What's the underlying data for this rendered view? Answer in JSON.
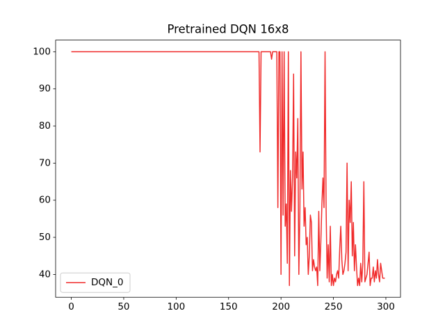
{
  "chart_data": {
    "type": "line",
    "title": "Pretrained DQN 16x8",
    "x": [
      0,
      1,
      2,
      3,
      4,
      5,
      6,
      7,
      8,
      9,
      10,
      11,
      12,
      13,
      14,
      15,
      16,
      17,
      18,
      19,
      20,
      21,
      22,
      23,
      24,
      25,
      26,
      27,
      28,
      29,
      30,
      31,
      32,
      33,
      34,
      35,
      36,
      37,
      38,
      39,
      40,
      41,
      42,
      43,
      44,
      45,
      46,
      47,
      48,
      49,
      50,
      51,
      52,
      53,
      54,
      55,
      56,
      57,
      58,
      59,
      60,
      61,
      62,
      63,
      64,
      65,
      66,
      67,
      68,
      69,
      70,
      71,
      72,
      73,
      74,
      75,
      76,
      77,
      78,
      79,
      80,
      81,
      82,
      83,
      84,
      85,
      86,
      87,
      88,
      89,
      90,
      91,
      92,
      93,
      94,
      95,
      96,
      97,
      98,
      99,
      100,
      101,
      102,
      103,
      104,
      105,
      106,
      107,
      108,
      109,
      110,
      111,
      112,
      113,
      114,
      115,
      116,
      117,
      118,
      119,
      120,
      121,
      122,
      123,
      124,
      125,
      126,
      127,
      128,
      129,
      130,
      131,
      132,
      133,
      134,
      135,
      136,
      137,
      138,
      139,
      140,
      141,
      142,
      143,
      144,
      145,
      146,
      147,
      148,
      149,
      150,
      151,
      152,
      153,
      154,
      155,
      156,
      157,
      158,
      159,
      160,
      161,
      162,
      163,
      164,
      165,
      166,
      167,
      168,
      169,
      170,
      171,
      172,
      173,
      174,
      175,
      176,
      177,
      178,
      179,
      180,
      181,
      182,
      183,
      184,
      185,
      186,
      187,
      188,
      189,
      190,
      191,
      192,
      193,
      194,
      195,
      196,
      197,
      198,
      199,
      200,
      201,
      202,
      203,
      204,
      205,
      206,
      207,
      208,
      209,
      210,
      211,
      212,
      213,
      214,
      215,
      216,
      217,
      218,
      219,
      220,
      221,
      222,
      223,
      224,
      225,
      226,
      227,
      228,
      229,
      230,
      231,
      232,
      233,
      234,
      235,
      236,
      237,
      238,
      239,
      240,
      241,
      242,
      243,
      244,
      245,
      246,
      247,
      248,
      249,
      250,
      251,
      252,
      253,
      254,
      255,
      256,
      257,
      258,
      259,
      260,
      261,
      262,
      263,
      264,
      265,
      266,
      267,
      268,
      269,
      270,
      271,
      272,
      273,
      274,
      275,
      276,
      277,
      278,
      279,
      280,
      281,
      282,
      283,
      284,
      285,
      286,
      287,
      288,
      289,
      290,
      291,
      292,
      293,
      294,
      295,
      296,
      297,
      298,
      299
    ],
    "series": [
      {
        "name": "DQN_0",
        "color": "#f02c2c",
        "values": [
          100,
          100,
          100,
          100,
          100,
          100,
          100,
          100,
          100,
          100,
          100,
          100,
          100,
          100,
          100,
          100,
          100,
          100,
          100,
          100,
          100,
          100,
          100,
          100,
          100,
          100,
          100,
          100,
          100,
          100,
          100,
          100,
          100,
          100,
          100,
          100,
          100,
          100,
          100,
          100,
          100,
          100,
          100,
          100,
          100,
          100,
          100,
          100,
          100,
          100,
          100,
          100,
          100,
          100,
          100,
          100,
          100,
          100,
          100,
          100,
          100,
          100,
          100,
          100,
          100,
          100,
          100,
          100,
          100,
          100,
          100,
          100,
          100,
          100,
          100,
          100,
          100,
          100,
          100,
          100,
          100,
          100,
          100,
          100,
          100,
          100,
          100,
          100,
          100,
          100,
          100,
          100,
          100,
          100,
          100,
          100,
          100,
          100,
          100,
          100,
          100,
          100,
          100,
          100,
          100,
          100,
          100,
          100,
          100,
          100,
          100,
          100,
          100,
          100,
          100,
          100,
          100,
          100,
          100,
          100,
          100,
          100,
          100,
          100,
          100,
          100,
          100,
          100,
          100,
          100,
          100,
          100,
          100,
          100,
          100,
          100,
          100,
          100,
          100,
          100,
          100,
          100,
          100,
          100,
          100,
          100,
          100,
          100,
          100,
          100,
          100,
          100,
          100,
          100,
          100,
          100,
          100,
          100,
          100,
          100,
          100,
          100,
          100,
          100,
          100,
          100,
          100,
          100,
          100,
          100,
          100,
          100,
          100,
          100,
          100,
          100,
          100,
          100,
          100,
          100,
          73,
          100,
          100,
          100,
          100,
          100,
          100,
          100,
          100,
          100,
          100,
          98,
          100,
          100,
          100,
          100,
          100,
          58,
          100,
          100,
          40,
          100,
          56,
          100,
          53,
          59,
          43,
          100,
          37,
          68,
          57,
          66,
          94,
          45,
          73,
          66,
          82,
          40,
          57,
          100,
          63,
          73,
          53,
          58,
          48,
          50,
          40,
          45,
          56,
          54,
          41,
          44,
          42,
          41,
          42,
          37,
          57,
          41,
          49,
          59,
          66,
          58,
          100,
          58,
          39,
          48,
          38,
          53,
          37,
          40,
          37,
          39,
          38,
          40,
          41,
          39,
          47,
          53,
          44,
          40,
          41,
          43,
          46,
          70,
          41,
          60,
          54,
          65,
          45,
          54,
          41,
          48,
          42,
          37,
          39,
          37,
          43,
          38,
          43,
          65,
          38,
          39,
          40,
          43,
          46,
          37,
          39,
          39,
          42,
          38,
          41,
          39,
          44,
          40,
          38,
          43,
          41,
          39,
          39,
          39
        ]
      }
    ],
    "xlim": [
      -14.95,
      313.95
    ],
    "xticks": [
      0,
      50,
      100,
      150,
      200,
      250,
      300
    ],
    "ylim": [
      33.85,
      103.15
    ],
    "yticks": [
      40,
      50,
      60,
      70,
      80,
      90,
      100
    ],
    "grid": false,
    "legend": "lower left"
  }
}
